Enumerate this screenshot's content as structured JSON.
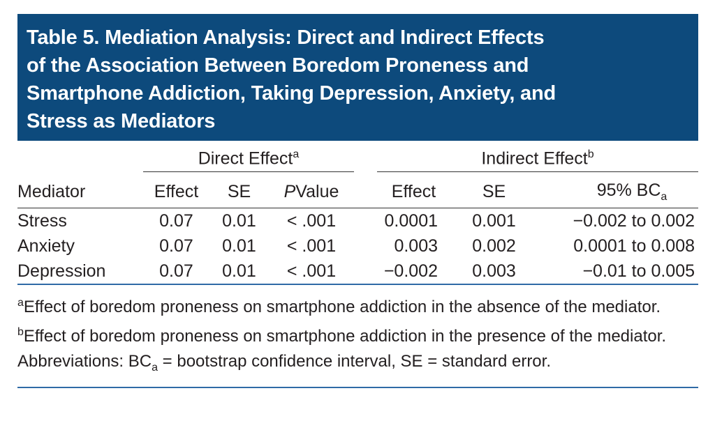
{
  "title_lines": [
    "Table 5. Mediation Analysis: Direct and Indirect Effects",
    "of the Association Between Boredom Proneness and",
    "Smartphone Addiction, Taking Depression, Anxiety, and",
    "Stress as Mediators"
  ],
  "table": {
    "group_headers": [
      {
        "text": "Direct Effect",
        "sup": "a"
      },
      {
        "text": "Indirect Effect",
        "sup": "b"
      }
    ],
    "columns": [
      "Mediator",
      "Effect",
      "SE",
      {
        "italic": "P",
        "text": "Value"
      },
      "Effect",
      "SE",
      {
        "text": "95% BC",
        "sub": "a"
      }
    ],
    "rows": [
      [
        "Stress",
        "0.07",
        "0.01",
        "< .001",
        "0.0001",
        "0.001",
        "−0.002 to 0.002"
      ],
      [
        "Anxiety",
        "0.07",
        "0.01",
        "< .001",
        "0.003",
        "0.002",
        "0.0001 to 0.008"
      ],
      [
        "Depression",
        "0.07",
        "0.01",
        "< .001",
        "−0.002",
        "0.003",
        "−0.01 to 0.005"
      ]
    ]
  },
  "footnotes": [
    {
      "marker": "a",
      "text": "Effect of boredom proneness on smartphone addiction in the absence of the mediator."
    },
    {
      "marker": "b",
      "text": "Effect of boredom proneness on smartphone addiction in the presence of the mediator."
    }
  ],
  "abbreviations": {
    "before": "Abbreviations: BC",
    "sub": "a",
    "after": " = bootstrap confidence interval, SE = standard error."
  }
}
